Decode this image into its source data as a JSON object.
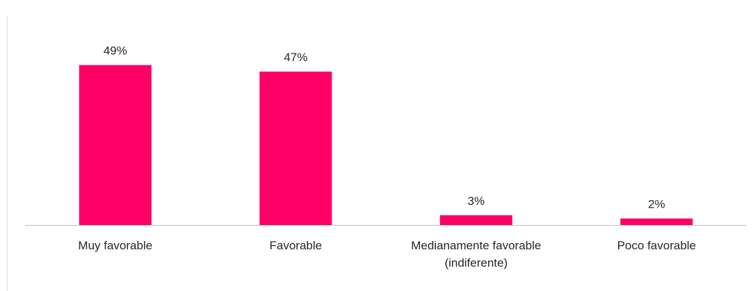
{
  "chart_data": {
    "type": "bar",
    "categories": [
      [
        "Muy favorable"
      ],
      [
        "Favorable"
      ],
      [
        "Medianamente favorable",
        "(indiferente)"
      ],
      [
        "Poco favorable"
      ]
    ],
    "values": [
      49,
      47,
      3,
      2
    ],
    "value_labels": [
      "49%",
      "47%",
      "3%",
      "2%"
    ],
    "unit": "%",
    "title": "",
    "xlabel": "",
    "ylabel": "",
    "ylim": [
      0,
      50
    ],
    "grid": false,
    "legend": "none",
    "bar_color": "#ff0066"
  }
}
